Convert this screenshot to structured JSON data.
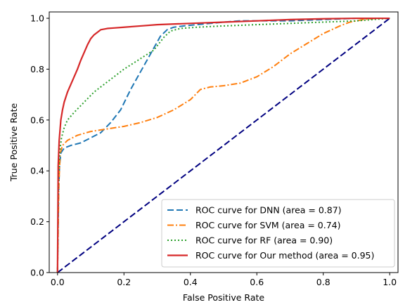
{
  "chart_data": {
    "type": "line",
    "xlabel": "False Positive Rate",
    "ylabel": "True Positive Rate",
    "xlim": [
      0.0,
      1.0
    ],
    "ylim": [
      0.0,
      1.0
    ],
    "xticks": [
      "0.0",
      "0.2",
      "0.4",
      "0.6",
      "0.8",
      "1.0"
    ],
    "yticks": [
      "0.0",
      "0.2",
      "0.4",
      "0.6",
      "0.8",
      "1.0"
    ],
    "grid": false,
    "legend_position": "lower-right",
    "series": [
      {
        "name": "ROC curve for DNN (area = 0.87)",
        "color": "#1f77b4",
        "style": "dashed",
        "x": [
          0.0,
          0.003,
          0.006,
          0.01,
          0.015,
          0.02,
          0.04,
          0.07,
          0.1,
          0.13,
          0.16,
          0.19,
          0.22,
          0.25,
          0.28,
          0.31,
          0.33,
          0.35,
          0.38,
          0.42,
          0.46,
          0.5,
          0.55,
          0.6,
          0.7,
          0.8,
          0.9,
          0.95,
          1.0
        ],
        "y": [
          0.0,
          0.3,
          0.42,
          0.47,
          0.48,
          0.49,
          0.5,
          0.51,
          0.53,
          0.55,
          0.59,
          0.64,
          0.72,
          0.79,
          0.86,
          0.93,
          0.955,
          0.965,
          0.97,
          0.975,
          0.98,
          0.985,
          0.99,
          0.99,
          0.99,
          0.995,
          1.0,
          1.0,
          1.0
        ]
      },
      {
        "name": "ROC curve for SVM (area = 0.74)",
        "color": "#ff7f0e",
        "style": "dashdot",
        "x": [
          0.0,
          0.004,
          0.008,
          0.015,
          0.03,
          0.06,
          0.1,
          0.15,
          0.2,
          0.25,
          0.3,
          0.35,
          0.4,
          0.43,
          0.46,
          0.5,
          0.55,
          0.6,
          0.65,
          0.7,
          0.75,
          0.8,
          0.85,
          0.88,
          0.92,
          0.96,
          1.0
        ],
        "y": [
          0.0,
          0.35,
          0.47,
          0.5,
          0.52,
          0.54,
          0.555,
          0.565,
          0.575,
          0.59,
          0.61,
          0.64,
          0.68,
          0.72,
          0.73,
          0.735,
          0.745,
          0.77,
          0.81,
          0.86,
          0.9,
          0.94,
          0.97,
          0.985,
          0.995,
          1.0,
          1.0
        ]
      },
      {
        "name": "ROC curve for RF (area = 0.90)",
        "color": "#2ca02c",
        "style": "dotted",
        "x": [
          0.0,
          0.003,
          0.007,
          0.012,
          0.02,
          0.03,
          0.05,
          0.08,
          0.11,
          0.14,
          0.17,
          0.2,
          0.23,
          0.26,
          0.29,
          0.32,
          0.34,
          0.37,
          0.42,
          0.5,
          0.6,
          0.7,
          0.8,
          0.9,
          1.0
        ],
        "y": [
          0.0,
          0.38,
          0.48,
          0.53,
          0.57,
          0.6,
          0.63,
          0.67,
          0.71,
          0.74,
          0.77,
          0.8,
          0.825,
          0.85,
          0.875,
          0.925,
          0.95,
          0.96,
          0.965,
          0.97,
          0.975,
          0.98,
          0.985,
          0.99,
          1.0
        ]
      },
      {
        "name": "ROC curve for Our method (area = 0.95)",
        "color": "#d62728",
        "style": "solid",
        "x": [
          0.0,
          0.002,
          0.005,
          0.01,
          0.015,
          0.02,
          0.03,
          0.04,
          0.05,
          0.06,
          0.07,
          0.08,
          0.09,
          0.1,
          0.11,
          0.12,
          0.13,
          0.15,
          0.17,
          0.2,
          0.25,
          0.3,
          0.4,
          0.5,
          0.6,
          0.7,
          0.8,
          0.9,
          1.0
        ],
        "y": [
          0.0,
          0.42,
          0.52,
          0.6,
          0.64,
          0.67,
          0.71,
          0.74,
          0.77,
          0.8,
          0.835,
          0.865,
          0.895,
          0.92,
          0.935,
          0.945,
          0.955,
          0.96,
          0.962,
          0.965,
          0.97,
          0.975,
          0.98,
          0.985,
          0.99,
          0.995,
          0.998,
          1.0,
          1.0
        ]
      },
      {
        "name": "",
        "color": "#000080",
        "style": "dashed",
        "x": [
          0.0,
          1.0
        ],
        "y": [
          0.0,
          1.0
        ]
      }
    ]
  }
}
